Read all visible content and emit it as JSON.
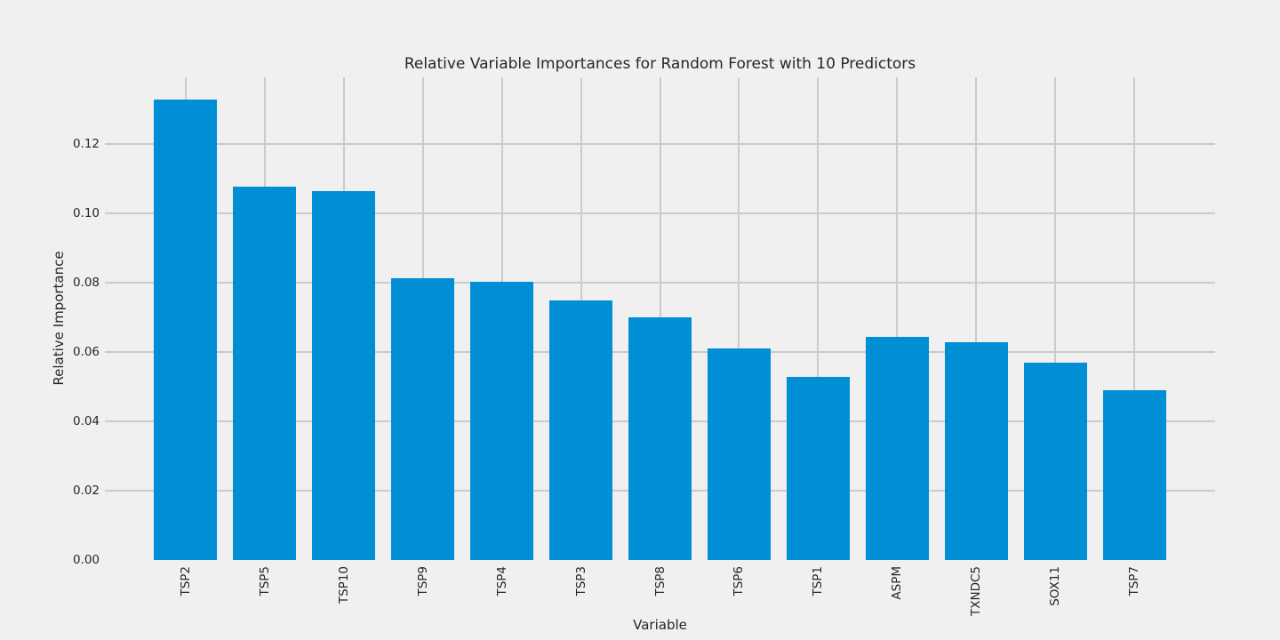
{
  "figure": {
    "title": "Relative Variable Importances for Random Forest with 10 Predictors",
    "xlabel": "Variable",
    "ylabel": "Relative Importance"
  },
  "chart_data": {
    "type": "bar",
    "title": "Relative Variable Importances for Random Forest with 10 Predictors",
    "xlabel": "Variable",
    "ylabel": "Relative Importance",
    "categories": [
      "TSP2",
      "TSP5",
      "TSP10",
      "TSP9",
      "TSP4",
      "TSP3",
      "TSP8",
      "TSP6",
      "TSP1",
      "ASPM",
      "TXNDC5",
      "SOX11",
      "TSP7"
    ],
    "values": [
      0.1328,
      0.1076,
      0.1064,
      0.0813,
      0.0803,
      0.0749,
      0.07,
      0.0611,
      0.0528,
      0.0643,
      0.0628,
      0.057,
      0.049
    ],
    "y_ticks": [
      0.0,
      0.02,
      0.04,
      0.06,
      0.08,
      0.1,
      0.12
    ],
    "y_tick_labels": [
      "0.00",
      "0.02",
      "0.04",
      "0.06",
      "0.08",
      "0.10",
      "0.12"
    ],
    "ylim": [
      0,
      0.1392
    ],
    "xlim": [
      -1.02,
      13.02
    ],
    "bar_width_fraction": 0.8,
    "grid": true,
    "legend": false,
    "x_tick_rotation_deg": 90,
    "colors": {
      "bar": "#008fd5",
      "background": "#f0f0f0",
      "gridline": "#cbcbcb",
      "text": "#262626"
    }
  }
}
